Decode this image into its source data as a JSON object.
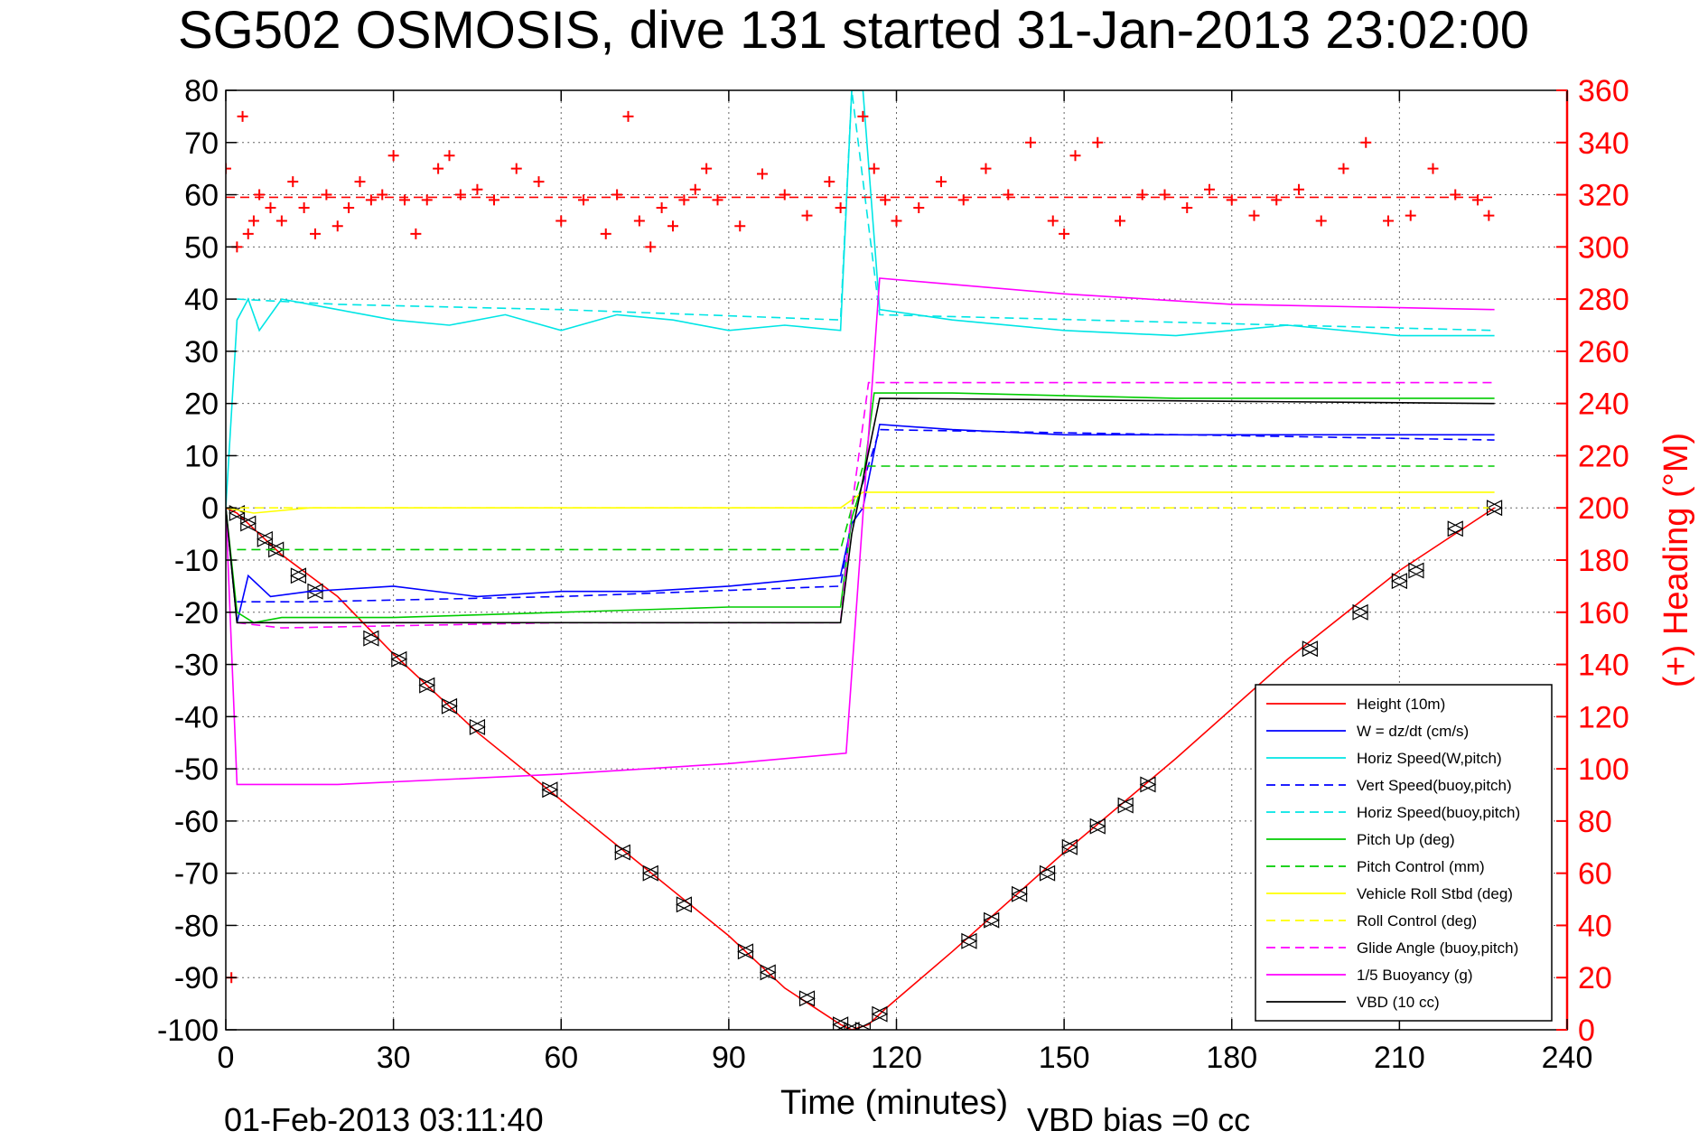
{
  "chart_data": {
    "type": "line",
    "title": "SG502 OSMOSIS, dive 131 started 31-Jan-2013 23:02:00",
    "xlabel": "Time (minutes)",
    "ylabel": "",
    "y2label": "(+) Heading (°M)",
    "xlim": [
      0,
      240
    ],
    "ylim": [
      -100,
      80
    ],
    "y2lim": [
      0,
      360
    ],
    "xticks": [
      "0",
      "30",
      "60",
      "90",
      "120",
      "150",
      "180",
      "210",
      "240"
    ],
    "yticks": [
      "80",
      "70",
      "60",
      "50",
      "40",
      "30",
      "20",
      "10",
      "0",
      "-10",
      "-20",
      "-30",
      "-40",
      "-50",
      "-60",
      "-70",
      "-80",
      "-90",
      "-100"
    ],
    "y2ticks": [
      "360",
      "340",
      "320",
      "300",
      "280",
      "260",
      "240",
      "220",
      "200",
      "180",
      "160",
      "140",
      "120",
      "100",
      "80",
      "60",
      "40",
      "20",
      "0"
    ],
    "grid": true,
    "legend_position": "bottom-right",
    "footer_left": "01-Feb-2013 03:11:40",
    "footer_right": "VBD bias =0 cc",
    "legend": [
      {
        "name": "Height (10m)",
        "color": "#ff0000",
        "dash": false
      },
      {
        "name": "W = dz/dt (cm/s)",
        "color": "#0000ff",
        "dash": false
      },
      {
        "name": "Horiz Speed(W,pitch)",
        "color": "#00e5e5",
        "dash": false
      },
      {
        "name": "Vert Speed(buoy,pitch)",
        "color": "#0000ff",
        "dash": true
      },
      {
        "name": "Horiz Speed(buoy,pitch)",
        "color": "#00e5e5",
        "dash": true
      },
      {
        "name": "Pitch Up (deg)",
        "color": "#00cc00",
        "dash": false
      },
      {
        "name": "Pitch Control (mm)",
        "color": "#00cc00",
        "dash": true
      },
      {
        "name": "Vehicle Roll Stbd (deg)",
        "color": "#ffff00",
        "dash": false
      },
      {
        "name": "Roll Control (deg)",
        "color": "#ffff00",
        "dash": true
      },
      {
        "name": "Glide Angle (buoy,pitch)",
        "color": "#ff00ff",
        "dash": true
      },
      {
        "name": "1/5 Buoyancy (g)",
        "color": "#ff00ff",
        "dash": false
      },
      {
        "name": "VBD (10 cc)",
        "color": "#000000",
        "dash": false
      }
    ],
    "series": [
      {
        "key": "height",
        "color": "#ff0000",
        "dash": false,
        "x": [
          0,
          2,
          5,
          10,
          20,
          30,
          45,
          60,
          75,
          90,
          100,
          110,
          112,
          115,
          118,
          130,
          150,
          170,
          190,
          210,
          227
        ],
        "y": [
          0,
          -1,
          -4,
          -9,
          -17,
          -28,
          -43,
          -56,
          -69,
          -82,
          -92,
          -99,
          -100,
          -99,
          -96,
          -85,
          -66,
          -48,
          -29,
          -12,
          0
        ]
      },
      {
        "key": "height-markers",
        "color": "#000000",
        "dash": false,
        "x": [
          2,
          4,
          7,
          9,
          13,
          16,
          26,
          31,
          36,
          40,
          45,
          58,
          71,
          76,
          82,
          93,
          97,
          104,
          110,
          112,
          114,
          117,
          133,
          137,
          142,
          147,
          151,
          156,
          161,
          165,
          194,
          203,
          210,
          213,
          220,
          227
        ],
        "y": [
          -1,
          -3,
          -6,
          -8,
          -13,
          -16,
          -25,
          -29,
          -34,
          -38,
          -42,
          -54,
          -66,
          -70,
          -76,
          -85,
          -89,
          -94,
          -99,
          -100,
          -100,
          -97,
          -83,
          -79,
          -74,
          -70,
          -65,
          -61,
          -57,
          -53,
          -27,
          -20,
          -14,
          -12,
          -4,
          0
        ]
      },
      {
        "key": "w",
        "color": "#0000ff",
        "dash": false,
        "x": [
          0,
          2,
          4,
          8,
          15,
          30,
          45,
          60,
          75,
          90,
          100,
          110,
          112,
          114,
          117,
          130,
          150,
          170,
          190,
          210,
          227
        ],
        "y": [
          0,
          -22,
          -13,
          -17,
          -16,
          -15,
          -17,
          -16,
          -16,
          -15,
          -14,
          -13,
          -3,
          0,
          16,
          15,
          14,
          14,
          14,
          14,
          14
        ]
      },
      {
        "key": "vert-speed-buoy",
        "color": "#0000ff",
        "dash": true,
        "x": [
          2,
          15,
          60,
          110,
          112,
          117,
          227
        ],
        "y": [
          -18,
          -18,
          -17,
          -15,
          -2,
          15,
          13
        ]
      },
      {
        "key": "horiz-speed-w",
        "color": "#00e5e5",
        "dash": false,
        "x": [
          0,
          2,
          4,
          6,
          10,
          20,
          30,
          40,
          50,
          60,
          70,
          80,
          90,
          100,
          110,
          112,
          114,
          117,
          130,
          150,
          170,
          190,
          210,
          227
        ],
        "y": [
          0,
          36,
          40,
          34,
          40,
          38,
          36,
          35,
          37,
          34,
          37,
          36,
          34,
          35,
          34,
          80,
          80,
          38,
          36,
          34,
          33,
          35,
          33,
          33
        ]
      },
      {
        "key": "horiz-speed-buoy",
        "color": "#00e5e5",
        "dash": true,
        "x": [
          2,
          20,
          60,
          110,
          112,
          117,
          227
        ],
        "y": [
          40,
          39,
          38,
          36,
          80,
          37,
          34
        ]
      },
      {
        "key": "pitch-up",
        "color": "#00cc00",
        "dash": false,
        "x": [
          0,
          2,
          5,
          10,
          30,
          60,
          90,
          110,
          112,
          114,
          116,
          130,
          170,
          210,
          227
        ],
        "y": [
          0,
          -20,
          -22,
          -21,
          -21,
          -20,
          -19,
          -19,
          -2,
          5,
          22,
          22,
          21,
          21,
          21
        ]
      },
      {
        "key": "pitch-control",
        "color": "#00cc00",
        "dash": true,
        "x": [
          2,
          30,
          110,
          114,
          227
        ],
        "y": [
          -8,
          -8,
          -8,
          8,
          8
        ]
      },
      {
        "key": "vehicle-roll",
        "color": "#ffff00",
        "dash": false,
        "x": [
          0,
          5,
          15,
          30,
          60,
          90,
          110,
          114,
          130,
          170,
          210,
          227
        ],
        "y": [
          0,
          -1,
          0,
          0,
          0,
          0,
          0,
          3,
          3,
          3,
          3,
          3
        ]
      },
      {
        "key": "roll-control",
        "color": "#ffff00",
        "dash": true,
        "x": [
          0,
          226
        ],
        "y": [
          0,
          0
        ]
      },
      {
        "key": "glide-angle",
        "color": "#ff00ff",
        "dash": true,
        "x": [
          2,
          10,
          60,
          110,
          112,
          115,
          227
        ],
        "y": [
          -22,
          -23,
          -22,
          -22,
          0,
          24,
          24
        ]
      },
      {
        "key": "buoyancy",
        "color": "#ff00ff",
        "dash": false,
        "x": [
          0,
          2,
          20,
          60,
          90,
          111,
          117,
          150,
          180,
          227
        ],
        "y": [
          0,
          -53,
          -53,
          -51,
          -49,
          -47,
          44,
          41,
          39,
          38
        ]
      },
      {
        "key": "vbd",
        "color": "#000000",
        "dash": false,
        "x": [
          0,
          2,
          5,
          110,
          112,
          117,
          227
        ],
        "y": [
          0,
          -22,
          -22,
          -22,
          -5,
          21,
          20
        ]
      },
      {
        "key": "heading",
        "axis": "right",
        "color": "#ff0000",
        "marker": "plus",
        "x": [
          0,
          1,
          2,
          3,
          4,
          5,
          6,
          8,
          10,
          12,
          14,
          16,
          18,
          20,
          22,
          24,
          26,
          28,
          30,
          32,
          34,
          36,
          38,
          40,
          42,
          45,
          48,
          52,
          56,
          60,
          64,
          68,
          70,
          72,
          74,
          76,
          78,
          80,
          82,
          84,
          86,
          88,
          92,
          96,
          100,
          104,
          108,
          110,
          114,
          116,
          118,
          120,
          124,
          128,
          132,
          136,
          140,
          144,
          148,
          150,
          152,
          156,
          160,
          164,
          168,
          172,
          176,
          180,
          184,
          188,
          192,
          196,
          200,
          204,
          208,
          212,
          216,
          220,
          224,
          226
        ],
        "y": [
          330,
          20,
          300,
          350,
          305,
          310,
          320,
          315,
          310,
          325,
          315,
          305,
          320,
          308,
          315,
          325,
          318,
          320,
          335,
          318,
          305,
          318,
          330,
          335,
          320,
          322,
          318,
          330,
          325,
          310,
          318,
          305,
          320,
          350,
          310,
          300,
          315,
          308,
          318,
          322,
          330,
          318,
          308,
          328,
          320,
          312,
          325,
          315,
          350,
          330,
          318,
          310,
          315,
          325,
          318,
          330,
          320,
          340,
          310,
          305,
          335,
          340,
          310,
          320,
          320,
          315,
          322,
          318,
          312,
          318,
          322,
          310,
          330,
          340,
          310,
          312,
          330,
          320,
          318,
          312
        ]
      },
      {
        "key": "heading-mean",
        "axis": "right",
        "color": "#ff0000",
        "dash": true,
        "x": [
          0,
          227
        ],
        "y": [
          319,
          319
        ]
      }
    ]
  }
}
